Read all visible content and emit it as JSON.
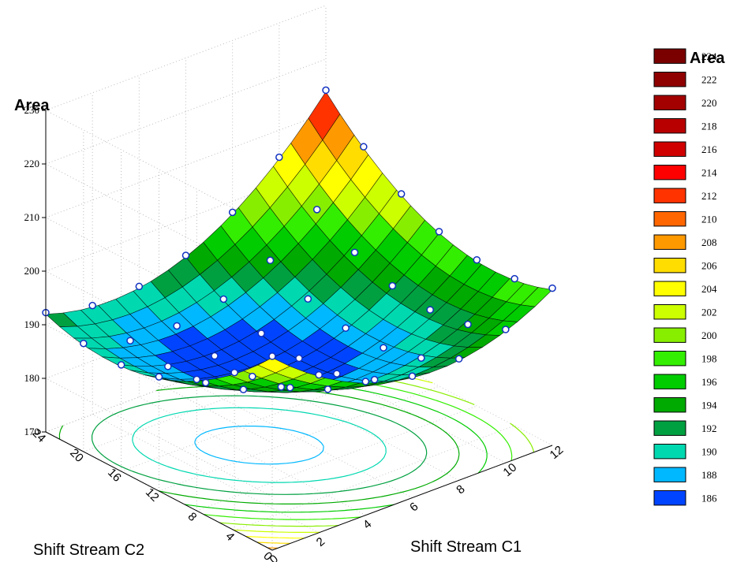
{
  "chart_data": {
    "type": "surface3d",
    "z_title": "Area",
    "x_label": "Shift Stream C1",
    "y_label": "Shift Stream C2",
    "z_ticks": [
      170,
      180,
      190,
      200,
      210,
      220,
      230
    ],
    "x_ticks": [
      0,
      2,
      4,
      6,
      8,
      10,
      12
    ],
    "y_ticks": [
      0,
      4,
      8,
      12,
      16,
      20,
      24
    ],
    "legend_title": "Area",
    "legend": [
      {
        "label": "224",
        "color": "#7a0000"
      },
      {
        "label": "222",
        "color": "#8f0000"
      },
      {
        "label": "220",
        "color": "#a30000"
      },
      {
        "label": "218",
        "color": "#b80000"
      },
      {
        "label": "216",
        "color": "#d00000"
      },
      {
        "label": "214",
        "color": "#ff0000"
      },
      {
        "label": "212",
        "color": "#ff3300"
      },
      {
        "label": "210",
        "color": "#ff6600"
      },
      {
        "label": "208",
        "color": "#ff9900"
      },
      {
        "label": "206",
        "color": "#ffdd00"
      },
      {
        "label": "204",
        "color": "#ffff00"
      },
      {
        "label": "202",
        "color": "#ccff00"
      },
      {
        "label": "200",
        "color": "#88ee00"
      },
      {
        "label": "198",
        "color": "#33ee00"
      },
      {
        "label": "196",
        "color": "#00cc00"
      },
      {
        "label": "194",
        "color": "#00aa00"
      },
      {
        "label": "192",
        "color": "#00a040"
      },
      {
        "label": "190",
        "color": "#00d8b0"
      },
      {
        "label": "188",
        "color": "#00b8ff"
      },
      {
        "label": "186",
        "color": "#0044ff"
      }
    ]
  }
}
